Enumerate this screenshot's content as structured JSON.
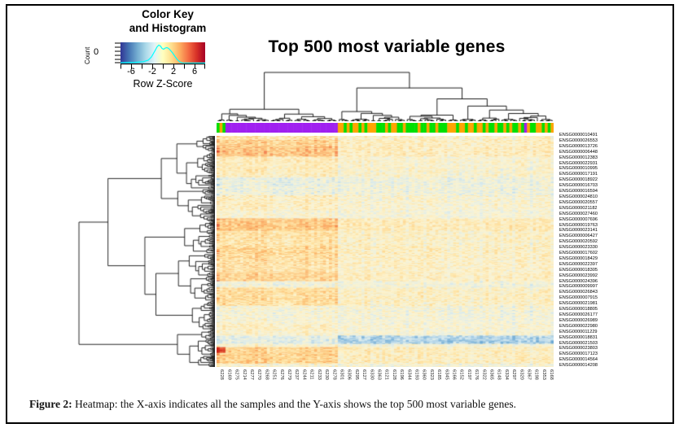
{
  "figure": {
    "caption_label": "Figure 2:",
    "caption_text": " Heatmap: the X-axis indicates all the samples and the Y-axis shows the top 500 most variable genes."
  },
  "color_key": {
    "title_line1": "Color Key",
    "title_line2": "and Histogram",
    "count_label": "Count",
    "zero_label": "0",
    "axis_label": "Row Z-Score",
    "tick_labels": [
      "-6",
      "-2",
      "2",
      "6"
    ],
    "gradient_stops": [
      "#313695",
      "#4575b4",
      "#74add1",
      "#abd9e9",
      "#e0f3f8",
      "#ffffbf",
      "#fee090",
      "#fdae61",
      "#f46d43",
      "#d73027",
      "#a50026"
    ],
    "histogram_color": "#00ffff"
  },
  "chart_data": {
    "type": "heatmap",
    "title": "Top 500 most variable genes",
    "n_genes_stated": 500,
    "z_scale": {
      "label": "Row Z-Score",
      "ticks": [
        -6,
        -2,
        2,
        6
      ],
      "range": [
        -6,
        6
      ]
    },
    "legend_position": "top-left color key with histogram",
    "clustering": {
      "rows": "dendrogram on left",
      "columns": "dendrogram on top"
    },
    "x_tick_labels": [
      "6228",
      "6169",
      "6275",
      "6214",
      "6277",
      "6270",
      "6268",
      "6251",
      "6276",
      "6279",
      "6237",
      "6244",
      "6211",
      "6233",
      "6230",
      "6278",
      "6301",
      "6306",
      "6295",
      "6127",
      "6330",
      "6363",
      "6121",
      "6128",
      "6196",
      "6344",
      "6193",
      "6360",
      "6323",
      "6185",
      "6345",
      "6166",
      "6152",
      "6197",
      "6176",
      "6322",
      "6365",
      "6148",
      "6334",
      "6297",
      "6320",
      "6367",
      "6198",
      "6353",
      "6168"
    ],
    "y_tick_labels": [
      "ENSG0000010491",
      "ENSG0000026553",
      "ENSG0000013726",
      "ENSG0000006448",
      "ENSG0000012383",
      "ENSG0000022931",
      "ENSG0000010995",
      "ENSG0000017191",
      "ENSG0000018922",
      "ENSG0000016703",
      "ENSG0000016594",
      "ENSG0000024810",
      "ENSG0000020557",
      "ENSG0000021182",
      "ENSG0000027460",
      "ENSG0000007696",
      "ENSG0000019763",
      "ENSG0000023141",
      "ENSG0000006427",
      "ENSG0000020592",
      "ENSG0000023330",
      "ENSG0000017602",
      "ENSG0000018429",
      "ENSG0000022397",
      "ENSG0000018305",
      "ENSG0000023992",
      "ENSG0000024396",
      "ENSG0000009997",
      "ENSG0000026843",
      "ENSG0000007915",
      "ENSG0000021981",
      "ENSG0000018805",
      "ENSG0000026177",
      "ENSG0000026989",
      "ENSG0000022980",
      "ENSG0000011229",
      "ENSG0000018831",
      "ENSG0000021503",
      "ENSG0000023803",
      "ENSG0000017123",
      "ENSG0000014564",
      "ENSG0000014208"
    ],
    "column_side_colors": {
      "purple": "#a020f0",
      "green": "#00e000",
      "orange": "#ffa500",
      "left_purple_block_fraction": 0.35,
      "note": "left ~35% of columns form a solid purple block (first few columns green/orange/green); right ~65% alternate green and orange with a rare purple stripe"
    },
    "cell_palette": [
      "#6aa7d2",
      "#a5cce4",
      "#d3e8f0",
      "#eef1dd",
      "#fdf3cd",
      "#fee5a6",
      "#fdcd84",
      "#fba75e",
      "#ee6d40",
      "#cf2b1e"
    ],
    "qualitative_pattern": "left purple sample block shows warmer/orange row z-scores; right block is paler with scattered light-blue cells; a few saturated red streaks in the first columns near the bottom rows"
  }
}
